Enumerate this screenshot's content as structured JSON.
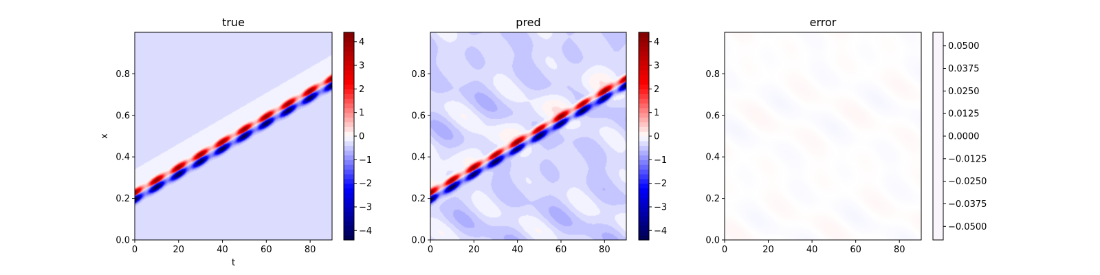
{
  "chart_data": [
    {
      "type": "heatmap",
      "title": "true",
      "xlabel": "t",
      "ylabel": "x",
      "xlim": [
        0,
        90
      ],
      "ylim": [
        0,
        1
      ],
      "xticks": [
        "0",
        "20",
        "40",
        "60",
        "80"
      ],
      "yticks": [
        "0.0",
        "0.2",
        "0.4",
        "0.6",
        "0.8"
      ],
      "colorbar": {
        "cmap": "seismic",
        "range": [
          -4.4,
          4.4
        ],
        "ticks": [
          "−4",
          "−3",
          "−2",
          "−1",
          "0",
          "1",
          "2",
          "3",
          "4"
        ]
      },
      "field": {
        "kind": "wave-train",
        "start": 0.213,
        "speed": 0.00613,
        "amplitude": 4.3,
        "noise": 0
      }
    },
    {
      "type": "heatmap",
      "title": "pred",
      "xlabel": "",
      "ylabel": "",
      "xlim": [
        0,
        90
      ],
      "ylim": [
        0,
        1
      ],
      "xticks": [
        "0",
        "20",
        "40",
        "60",
        "80"
      ],
      "yticks": [
        "0.0",
        "0.2",
        "0.4",
        "0.6",
        "0.8"
      ],
      "colorbar": {
        "cmap": "seismic",
        "range": [
          -4.4,
          4.4
        ],
        "ticks": [
          "−4",
          "−3",
          "−2",
          "−1",
          "0",
          "1",
          "2",
          "3",
          "4"
        ]
      },
      "field": {
        "kind": "wave-train",
        "start": 0.213,
        "speed": 0.00613,
        "amplitude": 4.3,
        "noise": 0.08
      }
    },
    {
      "type": "heatmap",
      "title": "error",
      "xlabel": "",
      "ylabel": "",
      "xlim": [
        0,
        90
      ],
      "ylim": [
        0,
        1
      ],
      "xticks": [
        "0",
        "20",
        "40",
        "60",
        "80"
      ],
      "yticks": [
        "0.0",
        "0.2",
        "0.4",
        "0.6",
        "0.8"
      ],
      "colorbar": {
        "cmap": "seismic",
        "range": [
          -0.0575,
          0.0575
        ],
        "ticks": [
          "−0.0500",
          "−0.0375",
          "−0.0250",
          "−0.0125",
          "0.0000",
          "0.0125",
          "0.0250",
          "0.0375",
          "0.0500"
        ]
      },
      "field": {
        "kind": "near-zero",
        "value": 0.0
      }
    }
  ]
}
